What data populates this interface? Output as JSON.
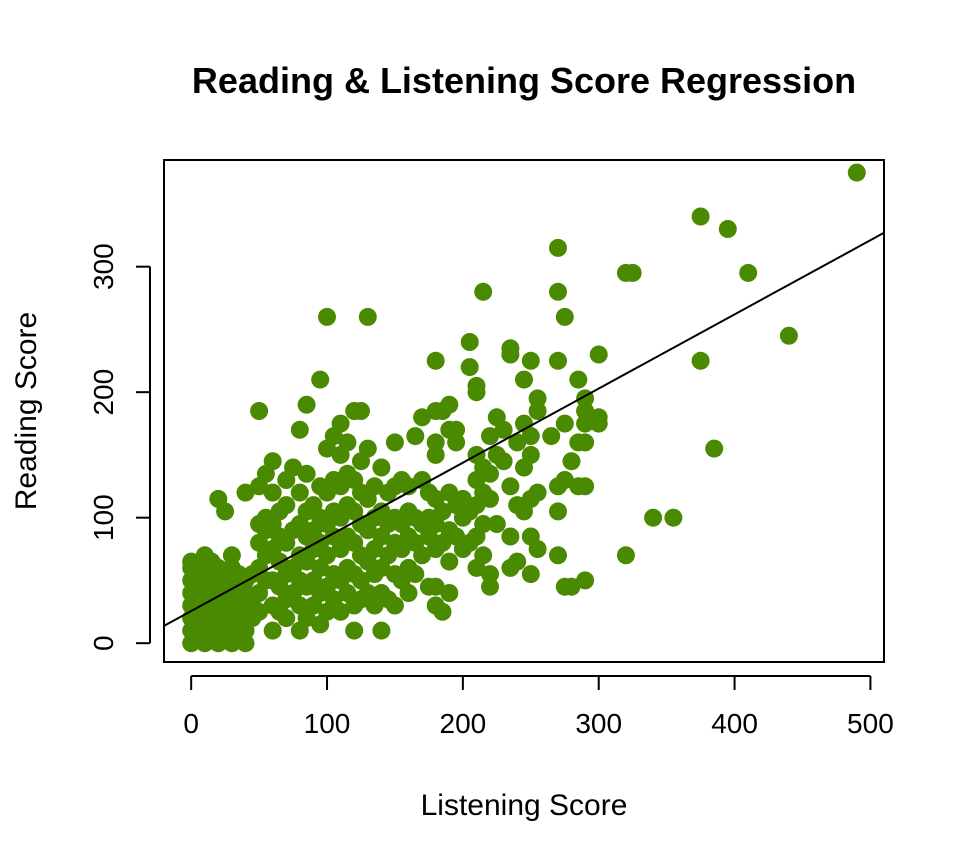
{
  "chart_data": {
    "type": "scatter",
    "title": "Reading & Listening Score Regression",
    "xlabel": "Listening Score",
    "ylabel": "Reading Score",
    "xlim": [
      -20,
      510
    ],
    "ylim": [
      -15,
      385
    ],
    "xticks": [
      0,
      100,
      200,
      300,
      400,
      500
    ],
    "yticks": [
      0,
      100,
      200,
      300
    ],
    "point_color": "#4A8A00",
    "line_color": "#000000",
    "grid": false,
    "legend": "none",
    "regression": {
      "intercept": 25.6,
      "slope": 0.591
    },
    "points": [
      [
        0,
        0
      ],
      [
        0,
        10
      ],
      [
        0,
        20
      ],
      [
        0,
        30
      ],
      [
        0,
        40
      ],
      [
        0,
        50
      ],
      [
        0,
        60
      ],
      [
        0,
        65
      ],
      [
        5,
        5
      ],
      [
        5,
        15
      ],
      [
        5,
        25
      ],
      [
        5,
        35
      ],
      [
        5,
        45
      ],
      [
        5,
        55
      ],
      [
        10,
        0
      ],
      [
        10,
        10
      ],
      [
        10,
        20
      ],
      [
        10,
        30
      ],
      [
        10,
        40
      ],
      [
        10,
        50
      ],
      [
        10,
        60
      ],
      [
        10,
        70
      ],
      [
        15,
        5
      ],
      [
        15,
        15
      ],
      [
        15,
        25
      ],
      [
        15,
        35
      ],
      [
        15,
        45
      ],
      [
        15,
        55
      ],
      [
        15,
        65
      ],
      [
        20,
        0
      ],
      [
        20,
        10
      ],
      [
        20,
        20
      ],
      [
        20,
        30
      ],
      [
        20,
        40
      ],
      [
        20,
        50
      ],
      [
        20,
        60
      ],
      [
        20,
        115
      ],
      [
        25,
        5
      ],
      [
        25,
        15
      ],
      [
        25,
        25
      ],
      [
        25,
        35
      ],
      [
        25,
        45
      ],
      [
        25,
        55
      ],
      [
        25,
        105
      ],
      [
        30,
        0
      ],
      [
        30,
        10
      ],
      [
        30,
        20
      ],
      [
        30,
        30
      ],
      [
        30,
        40
      ],
      [
        30,
        50
      ],
      [
        30,
        60
      ],
      [
        30,
        70
      ],
      [
        35,
        5
      ],
      [
        35,
        15
      ],
      [
        35,
        25
      ],
      [
        35,
        35
      ],
      [
        35,
        45
      ],
      [
        35,
        55
      ],
      [
        40,
        0
      ],
      [
        40,
        10
      ],
      [
        40,
        20
      ],
      [
        40,
        30
      ],
      [
        40,
        40
      ],
      [
        40,
        50
      ],
      [
        40,
        120
      ],
      [
        45,
        20
      ],
      [
        45,
        35
      ],
      [
        45,
        55
      ],
      [
        50,
        25
      ],
      [
        50,
        40
      ],
      [
        50,
        60
      ],
      [
        50,
        80
      ],
      [
        50,
        95
      ],
      [
        50,
        125
      ],
      [
        50,
        185
      ],
      [
        55,
        50
      ],
      [
        55,
        70
      ],
      [
        55,
        90
      ],
      [
        55,
        100
      ],
      [
        55,
        135
      ],
      [
        60,
        10
      ],
      [
        60,
        30
      ],
      [
        60,
        50
      ],
      [
        60,
        75
      ],
      [
        60,
        95
      ],
      [
        60,
        120
      ],
      [
        60,
        145
      ],
      [
        65,
        25
      ],
      [
        65,
        45
      ],
      [
        65,
        65
      ],
      [
        65,
        85
      ],
      [
        65,
        105
      ],
      [
        70,
        20
      ],
      [
        70,
        35
      ],
      [
        70,
        55
      ],
      [
        70,
        80
      ],
      [
        70,
        110
      ],
      [
        70,
        130
      ],
      [
        75,
        40
      ],
      [
        75,
        60
      ],
      [
        75,
        90
      ],
      [
        75,
        140
      ],
      [
        80,
        10
      ],
      [
        80,
        30
      ],
      [
        80,
        50
      ],
      [
        80,
        70
      ],
      [
        80,
        95
      ],
      [
        80,
        120
      ],
      [
        80,
        170
      ],
      [
        85,
        20
      ],
      [
        85,
        45
      ],
      [
        85,
        65
      ],
      [
        85,
        85
      ],
      [
        85,
        105
      ],
      [
        85,
        135
      ],
      [
        85,
        190
      ],
      [
        90,
        30
      ],
      [
        90,
        50
      ],
      [
        90,
        75
      ],
      [
        90,
        90
      ],
      [
        90,
        110
      ],
      [
        95,
        15
      ],
      [
        95,
        40
      ],
      [
        95,
        60
      ],
      [
        95,
        80
      ],
      [
        95,
        100
      ],
      [
        95,
        125
      ],
      [
        95,
        210
      ],
      [
        100,
        25
      ],
      [
        100,
        45
      ],
      [
        100,
        70
      ],
      [
        100,
        95
      ],
      [
        100,
        120
      ],
      [
        100,
        155
      ],
      [
        100,
        260
      ],
      [
        105,
        35
      ],
      [
        105,
        55
      ],
      [
        105,
        85
      ],
      [
        105,
        105
      ],
      [
        105,
        130
      ],
      [
        105,
        165
      ],
      [
        110,
        25
      ],
      [
        110,
        50
      ],
      [
        110,
        75
      ],
      [
        110,
        100
      ],
      [
        110,
        125
      ],
      [
        110,
        150
      ],
      [
        110,
        175
      ],
      [
        115,
        40
      ],
      [
        115,
        60
      ],
      [
        115,
        85
      ],
      [
        115,
        110
      ],
      [
        115,
        135
      ],
      [
        115,
        160
      ],
      [
        120,
        10
      ],
      [
        120,
        30
      ],
      [
        120,
        55
      ],
      [
        120,
        80
      ],
      [
        120,
        105
      ],
      [
        120,
        130
      ],
      [
        120,
        185
      ],
      [
        125,
        35
      ],
      [
        125,
        50
      ],
      [
        125,
        70
      ],
      [
        125,
        95
      ],
      [
        125,
        120
      ],
      [
        125,
        145
      ],
      [
        125,
        185
      ],
      [
        130,
        40
      ],
      [
        130,
        65
      ],
      [
        130,
        90
      ],
      [
        130,
        115
      ],
      [
        130,
        155
      ],
      [
        130,
        260
      ],
      [
        135,
        30
      ],
      [
        135,
        55
      ],
      [
        135,
        75
      ],
      [
        135,
        100
      ],
      [
        135,
        125
      ],
      [
        140,
        10
      ],
      [
        140,
        40
      ],
      [
        140,
        60
      ],
      [
        140,
        85
      ],
      [
        140,
        105
      ],
      [
        140,
        140
      ],
      [
        145,
        35
      ],
      [
        145,
        70
      ],
      [
        145,
        95
      ],
      [
        145,
        120
      ],
      [
        150,
        30
      ],
      [
        150,
        55
      ],
      [
        150,
        80
      ],
      [
        150,
        100
      ],
      [
        150,
        125
      ],
      [
        150,
        160
      ],
      [
        155,
        50
      ],
      [
        155,
        75
      ],
      [
        155,
        95
      ],
      [
        155,
        130
      ],
      [
        160,
        40
      ],
      [
        160,
        60
      ],
      [
        160,
        85
      ],
      [
        160,
        105
      ],
      [
        160,
        125
      ],
      [
        165,
        55
      ],
      [
        165,
        80
      ],
      [
        165,
        100
      ],
      [
        165,
        165
      ],
      [
        170,
        70
      ],
      [
        170,
        95
      ],
      [
        170,
        130
      ],
      [
        170,
        180
      ],
      [
        175,
        45
      ],
      [
        175,
        85
      ],
      [
        175,
        100
      ],
      [
        175,
        120
      ],
      [
        180,
        30
      ],
      [
        180,
        45
      ],
      [
        180,
        75
      ],
      [
        180,
        95
      ],
      [
        180,
        115
      ],
      [
        180,
        150
      ],
      [
        180,
        160
      ],
      [
        180,
        185
      ],
      [
        180,
        225
      ],
      [
        185,
        25
      ],
      [
        185,
        80
      ],
      [
        185,
        105
      ],
      [
        185,
        185
      ],
      [
        190,
        40
      ],
      [
        190,
        65
      ],
      [
        190,
        90
      ],
      [
        190,
        120
      ],
      [
        190,
        170
      ],
      [
        190,
        190
      ],
      [
        195,
        85
      ],
      [
        195,
        110
      ],
      [
        195,
        160
      ],
      [
        195,
        170
      ],
      [
        200,
        75
      ],
      [
        200,
        100
      ],
      [
        200,
        115
      ],
      [
        205,
        80
      ],
      [
        205,
        105
      ],
      [
        205,
        220
      ],
      [
        205,
        240
      ],
      [
        210,
        60
      ],
      [
        210,
        85
      ],
      [
        210,
        110
      ],
      [
        210,
        130
      ],
      [
        210,
        150
      ],
      [
        210,
        200
      ],
      [
        210,
        205
      ],
      [
        215,
        70
      ],
      [
        215,
        95
      ],
      [
        215,
        120
      ],
      [
        215,
        140
      ],
      [
        215,
        280
      ],
      [
        220,
        45
      ],
      [
        220,
        55
      ],
      [
        220,
        115
      ],
      [
        220,
        135
      ],
      [
        220,
        165
      ],
      [
        225,
        95
      ],
      [
        225,
        150
      ],
      [
        225,
        180
      ],
      [
        230,
        145
      ],
      [
        230,
        170
      ],
      [
        235,
        60
      ],
      [
        235,
        85
      ],
      [
        235,
        125
      ],
      [
        235,
        230
      ],
      [
        235,
        235
      ],
      [
        240,
        65
      ],
      [
        240,
        110
      ],
      [
        240,
        160
      ],
      [
        245,
        105
      ],
      [
        245,
        140
      ],
      [
        245,
        175
      ],
      [
        245,
        210
      ],
      [
        250,
        55
      ],
      [
        250,
        85
      ],
      [
        250,
        115
      ],
      [
        250,
        150
      ],
      [
        250,
        165
      ],
      [
        250,
        225
      ],
      [
        255,
        75
      ],
      [
        255,
        120
      ],
      [
        255,
        185
      ],
      [
        255,
        195
      ],
      [
        265,
        165
      ],
      [
        270,
        70
      ],
      [
        270,
        105
      ],
      [
        270,
        125
      ],
      [
        270,
        225
      ],
      [
        270,
        280
      ],
      [
        270,
        315
      ],
      [
        275,
        45
      ],
      [
        275,
        130
      ],
      [
        275,
        175
      ],
      [
        275,
        260
      ],
      [
        280,
        45
      ],
      [
        280,
        145
      ],
      [
        285,
        125
      ],
      [
        285,
        160
      ],
      [
        285,
        210
      ],
      [
        290,
        50
      ],
      [
        290,
        125
      ],
      [
        290,
        160
      ],
      [
        290,
        175
      ],
      [
        290,
        185
      ],
      [
        290,
        195
      ],
      [
        300,
        175
      ],
      [
        300,
        180
      ],
      [
        300,
        230
      ],
      [
        320,
        70
      ],
      [
        320,
        295
      ],
      [
        325,
        295
      ],
      [
        340,
        100
      ],
      [
        355,
        100
      ],
      [
        375,
        225
      ],
      [
        375,
        340
      ],
      [
        385,
        155
      ],
      [
        395,
        330
      ],
      [
        410,
        295
      ],
      [
        440,
        245
      ],
      [
        490,
        375
      ]
    ]
  }
}
